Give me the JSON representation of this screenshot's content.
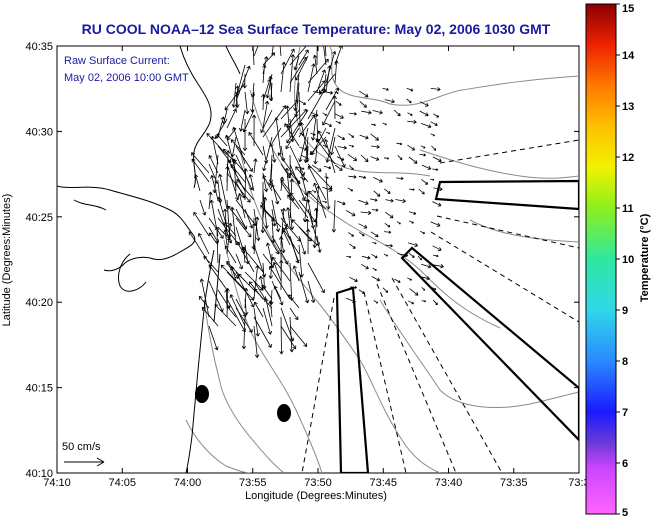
{
  "title": "RU COOL  NOAA–12  Sea Surface Temperature:  May 02, 2006 1030 GMT",
  "current_note": {
    "line1": "Raw Surface Current:",
    "line2": "May 02, 2006 10:00 GMT"
  },
  "axes": {
    "xlabel": "Longitude (Degrees:Minutes)",
    "ylabel": "Latitude (Degrees:Minutes)",
    "xticks": [
      "74:10",
      "74:05",
      "74:00",
      "73:55",
      "73:50",
      "73:45",
      "73:40",
      "73:35",
      "73:3"
    ],
    "yticks": [
      "40:35",
      "40:30",
      "40:25",
      "40:20",
      "40:15",
      "40:10"
    ]
  },
  "scale_label": "50 cm/s",
  "colorbar": {
    "label": "Temperature (°C)",
    "ticks": [
      "15",
      "14",
      "13",
      "12",
      "11",
      "10",
      "9",
      "8",
      "7",
      "6",
      "5"
    ]
  },
  "colors": {
    "title": "#1a1aa0",
    "contour": "#8a8a8a",
    "coast": "#000000",
    "vectors": "#000000"
  }
}
